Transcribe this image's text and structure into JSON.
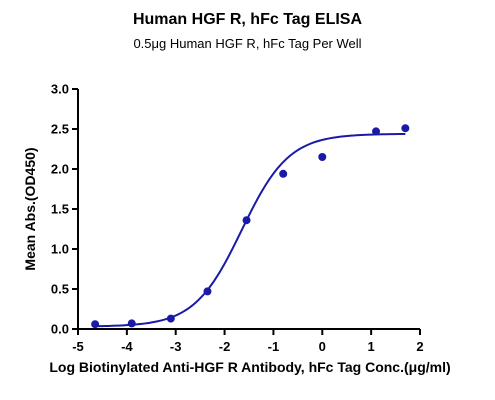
{
  "chart_data": {
    "type": "scatter",
    "title": "Human HGF R, hFc Tag ELISA",
    "subtitle": "0.5μg Human HGF R, hFc Tag Per Well",
    "xlabel": "Log Biotinylated Anti-HGF R Antibody, hFc Tag Conc.(μg/ml)",
    "ylabel": "Mean Abs.(OD450)",
    "xlim": [
      -5,
      2
    ],
    "ylim": [
      0,
      3.0
    ],
    "xticks": [
      "-5",
      "-4",
      "-3",
      "-2",
      "-1",
      "0",
      "1",
      "2"
    ],
    "yticks": [
      "0.0",
      "0.5",
      "1.0",
      "1.5",
      "2.0",
      "2.5",
      "3.0"
    ],
    "grid": false,
    "series": [
      {
        "x": [
          -4.65,
          -3.9,
          -3.1,
          -2.35,
          -1.55,
          -0.8,
          0.0,
          1.1,
          1.7
        ],
        "y": [
          0.06,
          0.07,
          0.13,
          0.47,
          1.36,
          1.94,
          2.15,
          2.47,
          2.51
        ]
      }
    ],
    "fit_curve": {
      "bottom": 0.03,
      "top": 2.44,
      "logEC50": -1.65,
      "hill": 0.9
    },
    "colors": {
      "marker": "#1a1aa6",
      "curve": "#1a1aa6",
      "axis": "#000000"
    }
  }
}
